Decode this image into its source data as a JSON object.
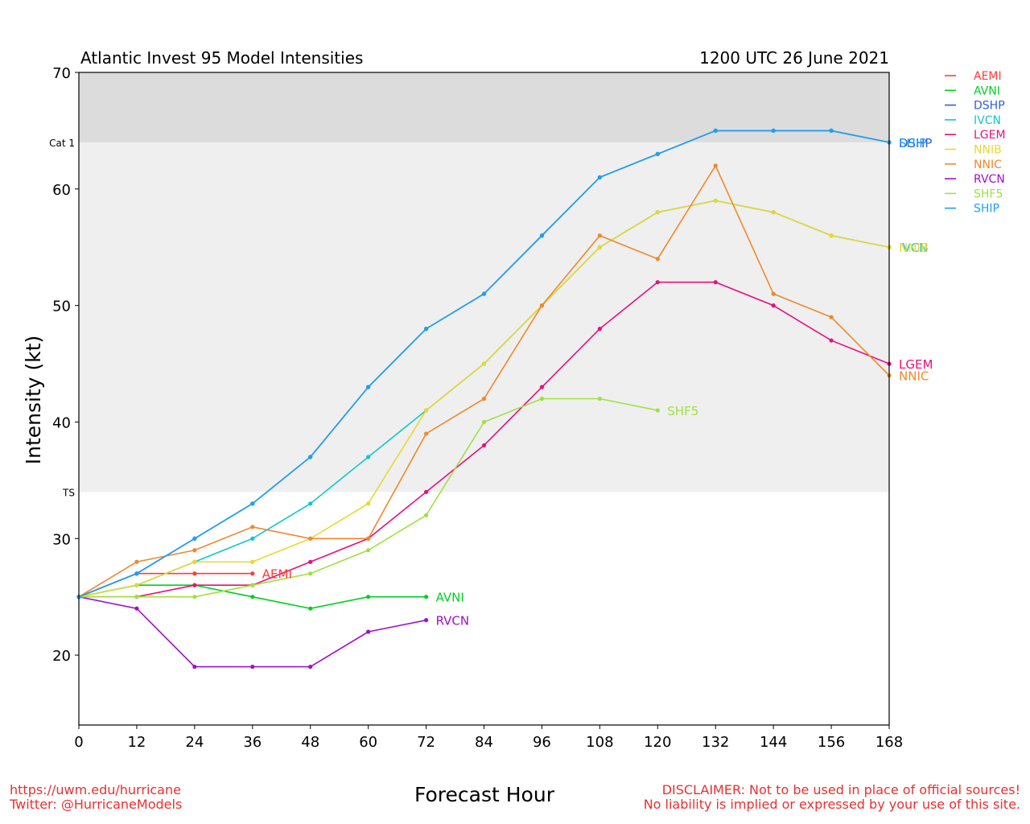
{
  "chart_data": {
    "type": "line",
    "title": "Atlantic Invest 95 Model Intensities",
    "subtitle": "1200 UTC 26 June 2021",
    "xlabel": "Forecast Hour",
    "ylabel": "Intensity (kt)",
    "xlim": [
      0,
      168
    ],
    "ylim": [
      14,
      70
    ],
    "x_ticks": [
      "0",
      "12",
      "24",
      "36",
      "48",
      "60",
      "72",
      "84",
      "96",
      "108",
      "120",
      "132",
      "144",
      "156",
      "168"
    ],
    "y_ticks": [
      "20",
      "30",
      "40",
      "50",
      "60",
      "70"
    ],
    "thresholds": [
      {
        "label": "Cat 1",
        "value": 64,
        "band_color": "#dcdcdc"
      },
      {
        "label": "TS",
        "value": 34,
        "band_color": "#efefef"
      }
    ],
    "grid": false,
    "legend_position": "right-outside-top",
    "series": [
      {
        "name": "AEMI",
        "color": "#ff3b3b",
        "points": [
          [
            0,
            25
          ],
          [
            12,
            27
          ],
          [
            24,
            27
          ],
          [
            36,
            27
          ]
        ],
        "end_label": "AEMI"
      },
      {
        "name": "AVNI",
        "color": "#00d020",
        "points": [
          [
            0,
            25
          ],
          [
            12,
            26
          ],
          [
            24,
            26
          ],
          [
            36,
            25
          ],
          [
            48,
            24
          ],
          [
            60,
            25
          ],
          [
            72,
            25
          ]
        ],
        "end_label": "AVNI"
      },
      {
        "name": "DSHP",
        "color": "#2a5fe0",
        "points": [
          [
            0,
            25
          ],
          [
            12,
            27
          ],
          [
            24,
            30
          ],
          [
            36,
            33
          ],
          [
            48,
            37
          ],
          [
            60,
            43
          ],
          [
            72,
            48
          ],
          [
            84,
            51
          ],
          [
            96,
            56
          ],
          [
            108,
            61
          ],
          [
            120,
            63
          ],
          [
            132,
            65
          ],
          [
            144,
            65
          ],
          [
            156,
            65
          ],
          [
            168,
            64
          ]
        ],
        "end_label": "DSHP"
      },
      {
        "name": "IVCN",
        "color": "#10c8c8",
        "points": [
          [
            0,
            25
          ],
          [
            12,
            26
          ],
          [
            24,
            28
          ],
          [
            36,
            30
          ],
          [
            48,
            33
          ],
          [
            60,
            37
          ],
          [
            72,
            41
          ],
          [
            84,
            45
          ],
          [
            96,
            50
          ],
          [
            108,
            55
          ],
          [
            120,
            58
          ],
          [
            132,
            59
          ],
          [
            144,
            58
          ],
          [
            156,
            56
          ],
          [
            168,
            55
          ]
        ],
        "end_label": "IVCN"
      },
      {
        "name": "LGEM",
        "color": "#e8107c",
        "points": [
          [
            0,
            25
          ],
          [
            12,
            25
          ],
          [
            24,
            26
          ],
          [
            36,
            26
          ],
          [
            48,
            28
          ],
          [
            60,
            30
          ],
          [
            72,
            34
          ],
          [
            84,
            38
          ],
          [
            96,
            43
          ],
          [
            108,
            48
          ],
          [
            120,
            52
          ],
          [
            132,
            52
          ],
          [
            144,
            50
          ],
          [
            156,
            47
          ],
          [
            168,
            45
          ]
        ],
        "end_label": "LGEM"
      },
      {
        "name": "NNIB",
        "color": "#e8d830",
        "points": [
          [
            0,
            25
          ],
          [
            12,
            26
          ],
          [
            24,
            28
          ],
          [
            36,
            28
          ],
          [
            48,
            30
          ],
          [
            60,
            33
          ],
          [
            72,
            41
          ],
          [
            84,
            45
          ],
          [
            96,
            50
          ],
          [
            108,
            55
          ],
          [
            120,
            58
          ],
          [
            132,
            59
          ],
          [
            144,
            58
          ],
          [
            156,
            56
          ],
          [
            168,
            55
          ]
        ],
        "end_label": "NNIB"
      },
      {
        "name": "NNIC",
        "color": "#f0882c",
        "points": [
          [
            0,
            25
          ],
          [
            12,
            28
          ],
          [
            24,
            29
          ],
          [
            36,
            31
          ],
          [
            48,
            30
          ],
          [
            60,
            30
          ],
          [
            72,
            39
          ],
          [
            84,
            42
          ],
          [
            96,
            50
          ],
          [
            108,
            56
          ],
          [
            120,
            54
          ],
          [
            132,
            62
          ],
          [
            144,
            51
          ],
          [
            156,
            49
          ],
          [
            168,
            44
          ]
        ],
        "end_label": "NNIC"
      },
      {
        "name": "RVCN",
        "color": "#a010c8",
        "points": [
          [
            0,
            25
          ],
          [
            12,
            24
          ],
          [
            24,
            19
          ],
          [
            36,
            19
          ],
          [
            48,
            19
          ],
          [
            60,
            22
          ],
          [
            72,
            23
          ]
        ],
        "end_label": "RVCN"
      },
      {
        "name": "SHF5",
        "color": "#a0e040",
        "points": [
          [
            0,
            25
          ],
          [
            12,
            25
          ],
          [
            24,
            25
          ],
          [
            36,
            26
          ],
          [
            48,
            27
          ],
          [
            60,
            29
          ],
          [
            72,
            32
          ],
          [
            84,
            40
          ],
          [
            96,
            42
          ],
          [
            108,
            42
          ],
          [
            120,
            41
          ]
        ],
        "end_label": "SHF5"
      },
      {
        "name": "SHIP",
        "color": "#1ea0f0",
        "points": [
          [
            0,
            25
          ],
          [
            12,
            27
          ],
          [
            24,
            30
          ],
          [
            36,
            33
          ],
          [
            48,
            37
          ],
          [
            60,
            43
          ],
          [
            72,
            48
          ],
          [
            84,
            51
          ],
          [
            96,
            56
          ],
          [
            108,
            61
          ],
          [
            120,
            63
          ],
          [
            132,
            65
          ],
          [
            144,
            65
          ],
          [
            156,
            65
          ],
          [
            168,
            64
          ]
        ],
        "end_label": "SHIP"
      }
    ]
  },
  "footer": {
    "url": "https://uwm.edu/hurricane",
    "twitter": "Twitter: @HurricaneModels",
    "disclaimer_1": "DISCLAIMER: Not to be used in place of official sources!",
    "disclaimer_2": "No liability is implied or expressed by your use of this site.",
    "color": "#e83030"
  }
}
